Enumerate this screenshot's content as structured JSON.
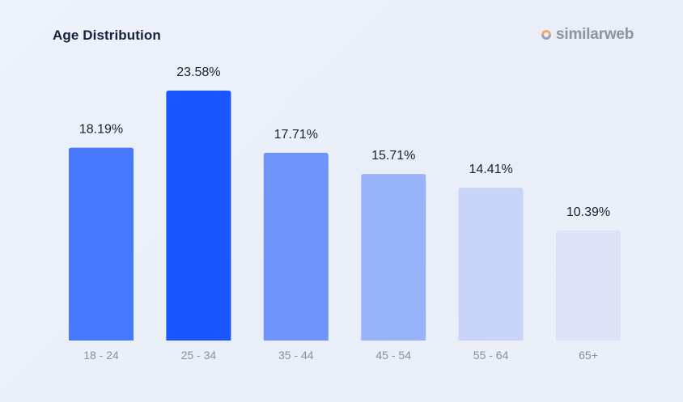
{
  "brand": {
    "name": "similarweb",
    "icon": "similarweb-logo-icon",
    "icon_colors": [
      "#f7a668",
      "#9aa0ad"
    ]
  },
  "chart_data": {
    "type": "bar",
    "title": "Age Distribution",
    "xlabel": "",
    "ylabel": "",
    "categories": [
      "18 - 24",
      "25 - 34",
      "35 - 44",
      "45 - 54",
      "55 - 64",
      "65+"
    ],
    "values": [
      18.19,
      23.58,
      17.71,
      15.71,
      14.41,
      10.39
    ],
    "value_labels": [
      "18.19%",
      "23.58%",
      "17.71%",
      "15.71%",
      "14.41%",
      "10.39%"
    ],
    "bar_colors": [
      "#4778ff",
      "#1b55ff",
      "#6e94fb",
      "#99b3fa",
      "#c8d5f8",
      "#dee2f6"
    ],
    "ylim": [
      0,
      23.58
    ],
    "grid": false,
    "legend": "none"
  }
}
